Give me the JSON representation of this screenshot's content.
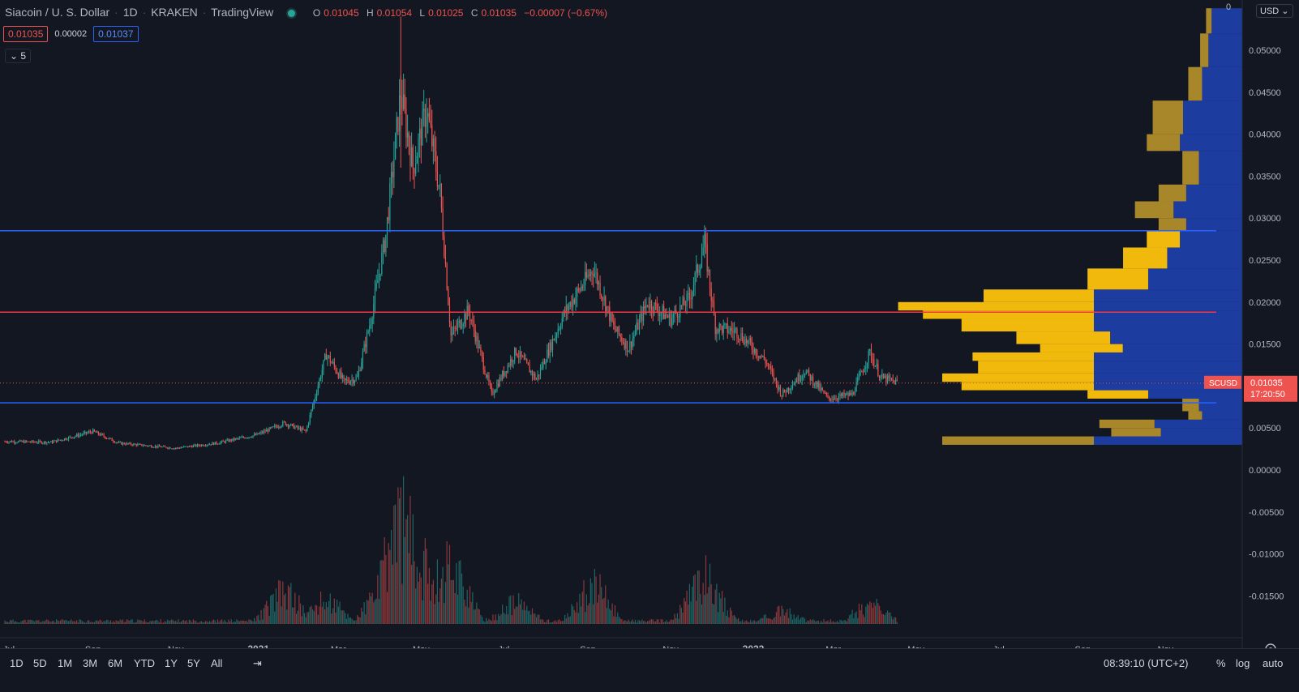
{
  "header": {
    "symbol": "Siacoin / U. S. Dollar",
    "interval": "1D",
    "exchange": "KRAKEN",
    "provider": "TradingView",
    "open_label": "O",
    "open": "0.01045",
    "high_label": "H",
    "high": "0.01054",
    "low_label": "L",
    "low": "0.01025",
    "close_label": "C",
    "close": "0.01035",
    "change": "−0.00007 (−0.67%)",
    "bid": "0.01035",
    "spread": "0.00002",
    "ask": "0.01037",
    "indicator_count": "5",
    "currency": "USD"
  },
  "toolbar": {
    "ranges": [
      "1D",
      "5D",
      "1M",
      "3M",
      "6M",
      "YTD",
      "1Y",
      "5Y",
      "All"
    ],
    "clock": "08:39:10 (UTC+2)",
    "percent": "%",
    "log": "log",
    "auto": "auto"
  },
  "colors": {
    "background": "#131722",
    "up": "#26a69a",
    "down": "#ef5350",
    "level_blue": "#2962ff",
    "level_red": "#f23645",
    "vp_gold": "#f0b90b",
    "vp_gold_dim": "#a8862a",
    "vp_blue": "#1e40ae"
  },
  "chart_data": {
    "type": "candlestick",
    "title": "Siacoin / U. S. Dollar",
    "xlabel": "",
    "ylabel": "",
    "x_ticks": [
      "Jul",
      "Sep",
      "Nov",
      "2021",
      "Mar",
      "May",
      "Jul",
      "Sep",
      "Nov",
      "2022",
      "Mar",
      "May",
      "Jul",
      "Sep",
      "Nov"
    ],
    "y_ticks": [
      "0.05000",
      "0.04500",
      "0.04000",
      "0.03500",
      "0.03000",
      "0.02500",
      "0.02000",
      "0.01500",
      "0.01000",
      "0.00500",
      "0.00000",
      "-0.00500",
      "-0.01000",
      "-0.01500"
    ],
    "ylim": [
      -0.018,
      0.055
    ],
    "last_price": "0.01035",
    "last_label": "SCUSD",
    "countdown": "17:20:50",
    "horizontal_levels": [
      {
        "value": 0.0285,
        "color": "blue"
      },
      {
        "value": 0.0188,
        "color": "red"
      },
      {
        "value": 0.008,
        "color": "blue"
      }
    ],
    "price_path": [
      [
        "2020-06-28",
        0.0034
      ],
      [
        "2020-08-01",
        0.0033
      ],
      [
        "2020-09-01",
        0.0046
      ],
      [
        "2020-09-20",
        0.0032
      ],
      [
        "2020-11-01",
        0.0026
      ],
      [
        "2020-12-01",
        0.0032
      ],
      [
        "2020-12-31",
        0.0042
      ],
      [
        "2021-01-20",
        0.0056
      ],
      [
        "2021-02-05",
        0.0046
      ],
      [
        "2021-02-20",
        0.0138
      ],
      [
        "2021-03-05",
        0.0105
      ],
      [
        "2021-03-15",
        0.011
      ],
      [
        "2021-03-25",
        0.018
      ],
      [
        "2021-04-05",
        0.028
      ],
      [
        "2021-04-16",
        0.045
      ],
      [
        "2021-04-25",
        0.036
      ],
      [
        "2021-05-05",
        0.043
      ],
      [
        "2021-05-15",
        0.033
      ],
      [
        "2021-05-23",
        0.016
      ],
      [
        "2021-06-05",
        0.019
      ],
      [
        "2021-06-22",
        0.009
      ],
      [
        "2021-07-10",
        0.0142
      ],
      [
        "2021-07-25",
        0.0108
      ],
      [
        "2021-08-15",
        0.0188
      ],
      [
        "2021-09-05",
        0.024
      ],
      [
        "2021-09-20",
        0.017
      ],
      [
        "2021-10-01",
        0.0145
      ],
      [
        "2021-10-15",
        0.02
      ],
      [
        "2021-11-01",
        0.018
      ],
      [
        "2021-11-15",
        0.0205
      ],
      [
        "2021-11-26",
        0.027
      ],
      [
        "2021-12-04",
        0.017
      ],
      [
        "2021-12-20",
        0.0165
      ],
      [
        "2022-01-10",
        0.013
      ],
      [
        "2022-01-22",
        0.009
      ],
      [
        "2022-02-08",
        0.0118
      ],
      [
        "2022-02-25",
        0.0085
      ],
      [
        "2022-03-15",
        0.009
      ],
      [
        "2022-03-28",
        0.014
      ],
      [
        "2022-04-05",
        0.011
      ],
      [
        "2022-04-18",
        0.0104
      ]
    ],
    "volume_profile": [
      [
        0.003,
        0.55
      ],
      [
        0.004,
        0.18
      ],
      [
        0.005,
        0.2
      ],
      [
        0.006,
        0.05
      ],
      [
        0.007,
        0.06
      ],
      [
        0.0085,
        0.22
      ],
      [
        0.0095,
        0.48
      ],
      [
        0.0105,
        0.55
      ],
      [
        0.0115,
        0.42
      ],
      [
        0.013,
        0.44
      ],
      [
        0.014,
        0.3
      ],
      [
        0.015,
        0.34
      ],
      [
        0.0165,
        0.48
      ],
      [
        0.018,
        0.62
      ],
      [
        0.019,
        0.71
      ],
      [
        0.02,
        0.4
      ],
      [
        0.0215,
        0.22
      ],
      [
        0.024,
        0.16
      ],
      [
        0.0265,
        0.12
      ],
      [
        0.0285,
        0.1
      ],
      [
        0.03,
        0.14
      ],
      [
        0.032,
        0.1
      ],
      [
        0.034,
        0.06
      ],
      [
        0.038,
        0.12
      ],
      [
        0.04,
        0.11
      ],
      [
        0.044,
        0.05
      ],
      [
        0.048,
        0.03
      ],
      [
        0.052,
        0.02
      ]
    ],
    "volume_peaks": [
      [
        "2021-01-20",
        0.3
      ],
      [
        "2021-02-20",
        0.22
      ],
      [
        "2021-04-05",
        0.4
      ],
      [
        "2021-04-16",
        1.0
      ],
      [
        "2021-05-05",
        0.55
      ],
      [
        "2021-05-23",
        0.58
      ],
      [
        "2021-07-10",
        0.2
      ],
      [
        "2021-09-05",
        0.35
      ],
      [
        "2021-11-26",
        0.45
      ],
      [
        "2022-01-22",
        0.12
      ],
      [
        "2022-03-28",
        0.18
      ]
    ]
  }
}
